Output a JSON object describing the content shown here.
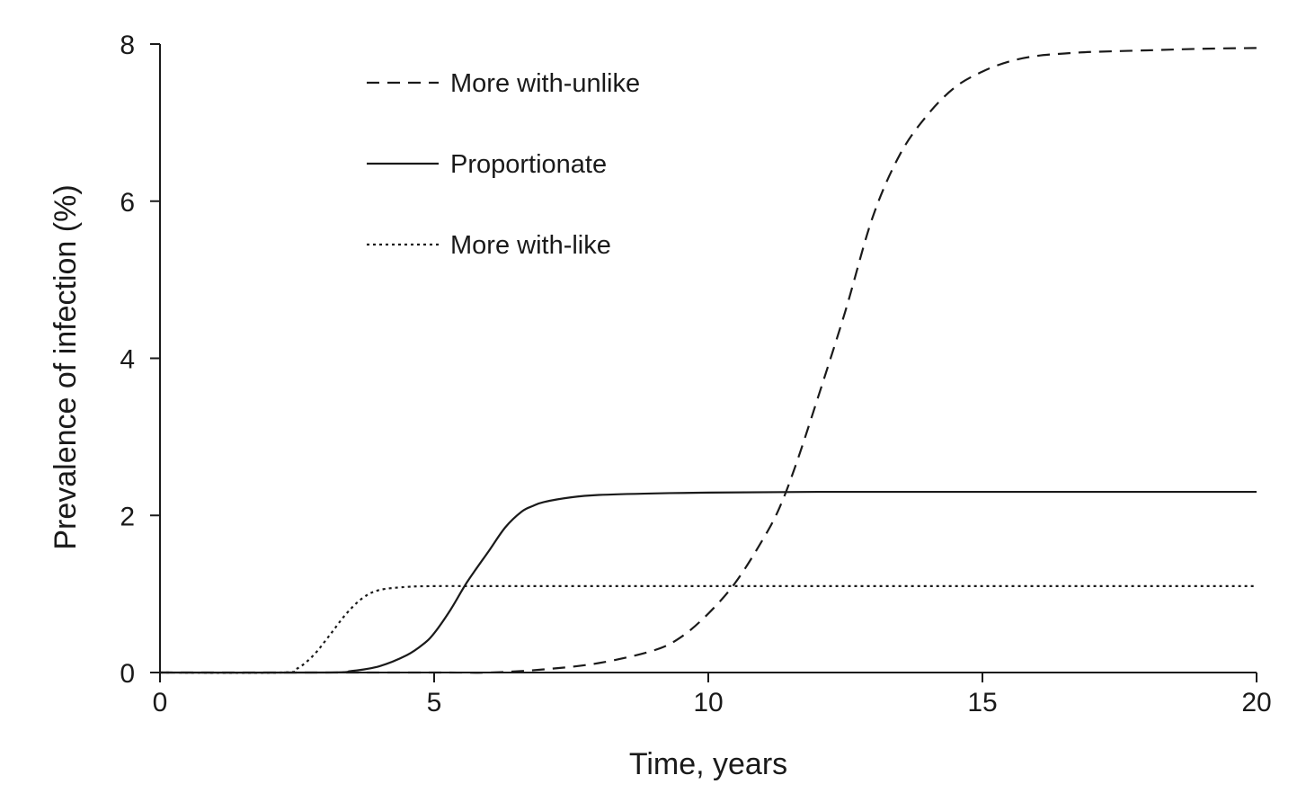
{
  "chart_data": {
    "type": "line",
    "title": "",
    "xlabel": "Time, years",
    "ylabel": "Prevalence of infection (%)",
    "xlim": [
      0,
      20
    ],
    "ylim": [
      0,
      8
    ],
    "xticks": [
      0,
      5,
      10,
      15,
      20
    ],
    "yticks": [
      0,
      2,
      4,
      6,
      8
    ],
    "grid": false,
    "legend_position": "top-left",
    "series": [
      {
        "name": "More with-unlike",
        "line_style": "dashed",
        "color": "#1a1a1a",
        "x": [
          0,
          5,
          6,
          7,
          8,
          9,
          9.5,
          10,
          10.5,
          11,
          11.3,
          11.6,
          12,
          12.5,
          13,
          13.5,
          14,
          14.5,
          15,
          15.5,
          16,
          16.5,
          17,
          18,
          19,
          20
        ],
        "y": [
          0,
          0,
          0,
          0.04,
          0.12,
          0.28,
          0.45,
          0.75,
          1.15,
          1.7,
          2.1,
          2.65,
          3.5,
          4.6,
          5.8,
          6.6,
          7.1,
          7.45,
          7.65,
          7.78,
          7.85,
          7.88,
          7.9,
          7.92,
          7.94,
          7.95
        ]
      },
      {
        "name": "Proportionate",
        "line_style": "solid",
        "color": "#1a1a1a",
        "x": [
          0,
          3,
          3.5,
          4,
          4.5,
          4.8,
          5,
          5.3,
          5.6,
          6,
          6.3,
          6.6,
          6.8,
          7,
          7.5,
          8,
          9,
          10,
          12,
          15,
          20
        ],
        "y": [
          0,
          0,
          0.02,
          0.08,
          0.22,
          0.36,
          0.5,
          0.8,
          1.15,
          1.55,
          1.85,
          2.05,
          2.12,
          2.17,
          2.23,
          2.26,
          2.28,
          2.29,
          2.3,
          2.3,
          2.3
        ]
      },
      {
        "name": "More with-like",
        "line_style": "dotted",
        "color": "#1a1a1a",
        "x": [
          0,
          2.2,
          2.5,
          2.8,
          3.1,
          3.4,
          3.7,
          4,
          4.5,
          5,
          6,
          8,
          10,
          15,
          20
        ],
        "y": [
          0,
          0,
          0.05,
          0.22,
          0.48,
          0.75,
          0.95,
          1.05,
          1.09,
          1.1,
          1.1,
          1.1,
          1.1,
          1.1,
          1.1
        ]
      }
    ]
  }
}
